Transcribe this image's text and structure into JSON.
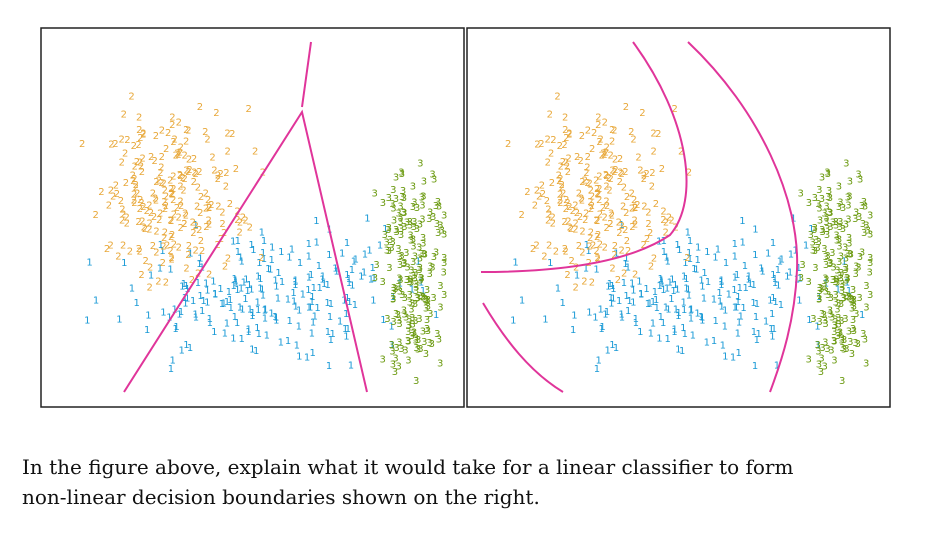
{
  "figure": {
    "classes": [
      {
        "label": "1",
        "color": "#1a9ad6"
      },
      {
        "label": "2",
        "color": "#e8a83a"
      },
      {
        "label": "3",
        "color": "#6b9a10"
      }
    ]
  },
  "question": {
    "lines": [
      "In the figure above, explain what it would take for a linear classifier to form",
      "non-linear decision boundaries shown on the right."
    ]
  }
}
